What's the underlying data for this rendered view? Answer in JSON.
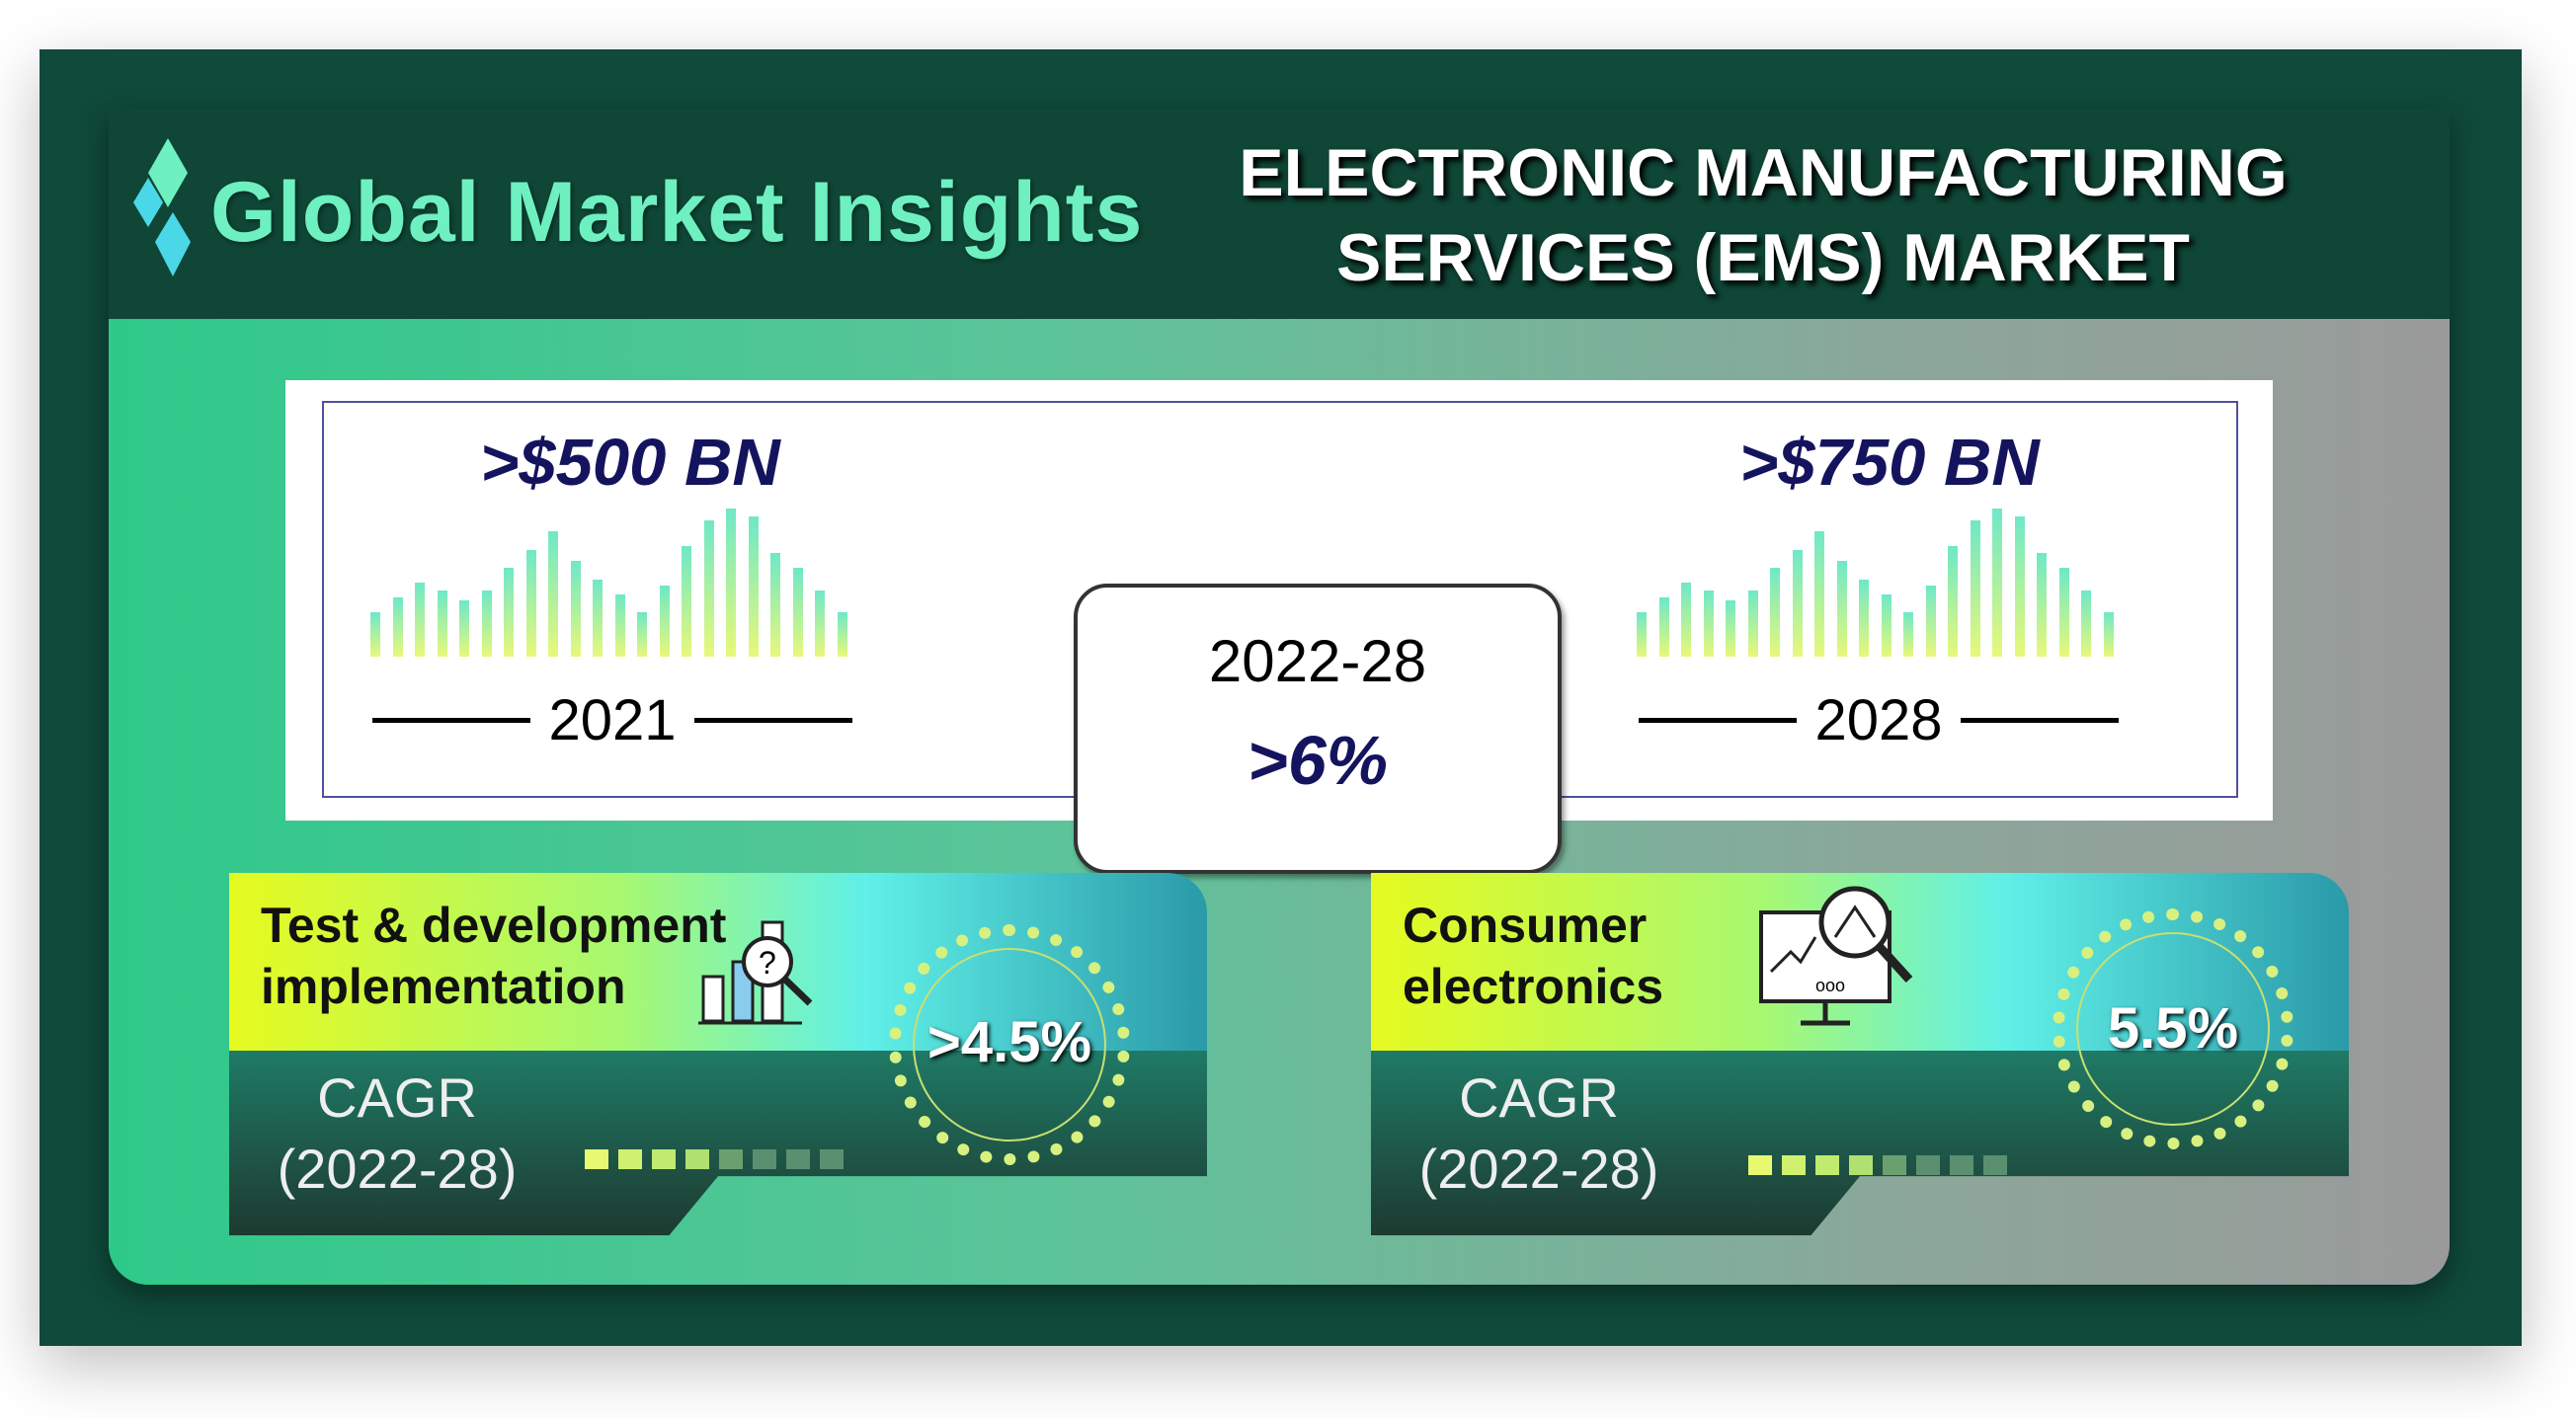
{
  "brand": {
    "name": "Global Market Insights",
    "logo_icon": "diamond-logo-icon"
  },
  "title": {
    "line1": "ELECTRONIC MANUFACTURING",
    "line2": "SERVICES (EMS) MARKET"
  },
  "market": {
    "start": {
      "value": ">$500 BN",
      "year": "2021"
    },
    "end": {
      "value": ">$750 BN",
      "year": "2028"
    },
    "growth": {
      "period": "2022-28",
      "cagr": ">6%"
    }
  },
  "segments": [
    {
      "label_line1": "Test & development",
      "label_line2": "implementation",
      "icon": "chart-magnifier-question-icon",
      "cagr_label": "CAGR",
      "cagr_period": "(2022-28)",
      "cagr_value": ">4.5%"
    },
    {
      "label_line1": "Consumer",
      "label_line2": "electronics",
      "icon": "monitor-magnifier-icon",
      "cagr_label": "CAGR",
      "cagr_period": "(2022-28)",
      "cagr_value": "5.5%"
    }
  ],
  "colors": {
    "header": "#0f4636",
    "value_text": "#14145e",
    "accent_green": "#6ef0c0"
  }
}
